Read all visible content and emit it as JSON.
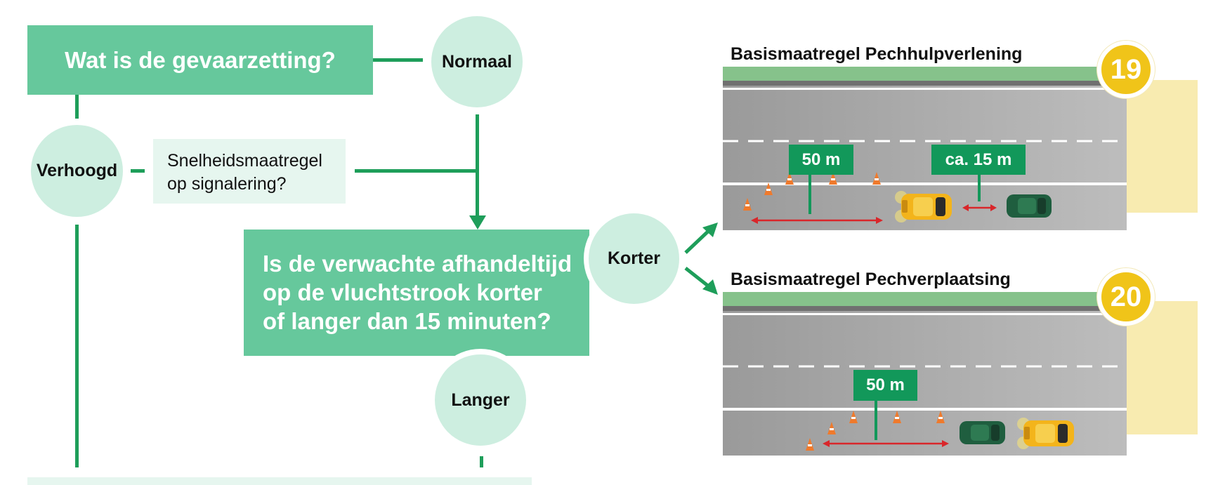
{
  "flow": {
    "question1": "Wat is de gevaarzetting?",
    "normaal": "Normaal",
    "verhoogd": "Verhoogd",
    "snelheid_line1": "Snelheidsmaatregel",
    "snelheid_line2": "op signalering?",
    "question2_line1": "Is de verwachte afhandeltijd",
    "question2_line2": "op de vluchtstrook korter",
    "question2_line3": "of langer dan 15 minuten?",
    "korter": "Korter",
    "langer": "Langer"
  },
  "measures": [
    {
      "title": "Basismaatregel Pechhulpverlening",
      "number": "19",
      "signs": [
        "50 m",
        "ca. 15 m"
      ]
    },
    {
      "title": "Basismaatregel Pechverplaatsing",
      "number": "20",
      "signs": [
        "50 m"
      ]
    }
  ],
  "colors": {
    "green_box": "#66c89c",
    "light_circle": "#cdeee0",
    "line_green": "#1e9e5a",
    "sign_green": "#12985a",
    "badge_yellow": "#f0c419",
    "cone_orange": "#ef7a2c",
    "measure_red": "#d9262a",
    "road_grey": "#a6a6a6"
  }
}
